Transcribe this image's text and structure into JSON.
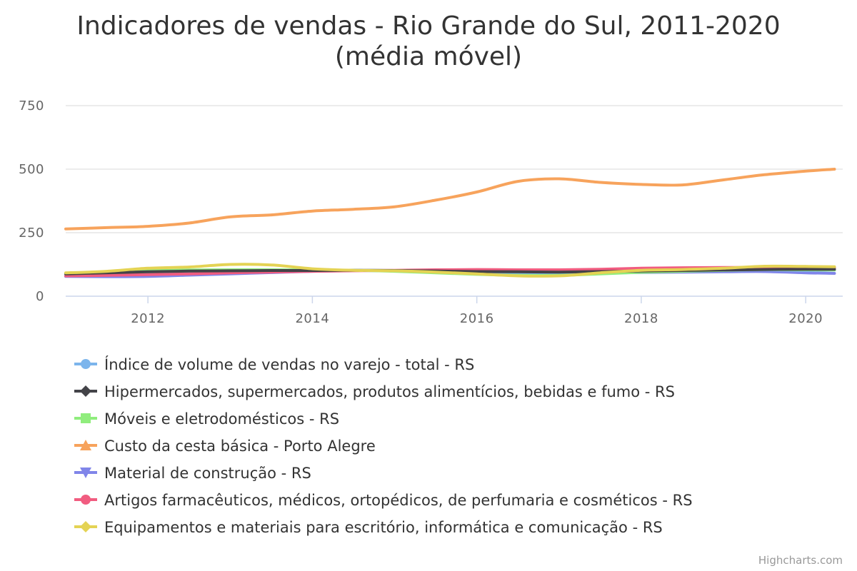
{
  "chart_data": {
    "type": "line",
    "title": "Indicadores de vendas - Rio Grande do Sul, 2011-2020",
    "subtitle": "(média móvel)",
    "xlabel": "",
    "ylabel": "",
    "xlim": [
      2011.0,
      2020.45
    ],
    "ylim": [
      0,
      750
    ],
    "x_ticks": [
      2012,
      2014,
      2016,
      2018,
      2020
    ],
    "y_ticks": [
      0,
      250,
      500,
      750
    ],
    "grid": "horizontal",
    "legend_position": "bottom",
    "x": [
      2011.0,
      2011.5,
      2012.0,
      2012.5,
      2013.0,
      2013.5,
      2014.0,
      2014.5,
      2015.0,
      2015.5,
      2016.0,
      2016.5,
      2017.0,
      2017.5,
      2018.0,
      2018.5,
      2019.0,
      2019.5,
      2020.0,
      2020.35
    ],
    "series": [
      {
        "name": "Índice de volume de vendas no varejo - total - RS",
        "color": "#7cb5ec",
        "marker": "circle",
        "values": [
          85,
          88,
          92,
          95,
          97,
          99,
          100,
          101,
          100,
          97,
          94,
          92,
          92,
          95,
          98,
          100,
          102,
          104,
          102,
          103
        ]
      },
      {
        "name": "Hipermercados, supermercados, produtos alimentícios, bebidas e fumo - RS",
        "color": "#434348",
        "marker": "diamond",
        "values": [
          88,
          92,
          96,
          99,
          100,
          101,
          101,
          102,
          101,
          99,
          97,
          96,
          95,
          97,
          99,
          101,
          103,
          105,
          106,
          106
        ]
      },
      {
        "name": "Móveis e eletrodomésticos - RS",
        "color": "#90ed7d",
        "marker": "square",
        "values": [
          90,
          95,
          100,
          103,
          104,
          104,
          103,
          102,
          98,
          92,
          86,
          82,
          82,
          88,
          94,
          98,
          102,
          105,
          104,
          103
        ]
      },
      {
        "name": "Custo da cesta básica - Porto Alegre",
        "color": "#f7a35c",
        "marker": "triangle",
        "values": [
          265,
          270,
          275,
          288,
          312,
          320,
          335,
          342,
          352,
          378,
          410,
          452,
          462,
          448,
          440,
          438,
          458,
          478,
          492,
          500
        ]
      },
      {
        "name": "Material de construção - RS",
        "color": "#8085e9",
        "marker": "triangle-down",
        "values": [
          78,
          77,
          78,
          83,
          88,
          93,
          98,
          101,
          100,
          97,
          96,
          94,
          93,
          92,
          93,
          95,
          96,
          97,
          92,
          90
        ]
      },
      {
        "name": "Artigos farmacêuticos, médicos, ortopédicos, de perfumaria e cosméticos - RS",
        "color": "#f15c80",
        "marker": "circle",
        "values": [
          80,
          82,
          85,
          88,
          92,
          95,
          98,
          100,
          102,
          104,
          105,
          104,
          104,
          106,
          110,
          112,
          113,
          113,
          112,
          112
        ]
      },
      {
        "name": "Equipamentos e materiais para escritório, informática e comunicação - RS",
        "color": "#e4d354",
        "marker": "diamond",
        "values": [
          92,
          98,
          110,
          115,
          125,
          123,
          108,
          102,
          100,
          95,
          88,
          80,
          80,
          92,
          102,
          105,
          110,
          118,
          117,
          116
        ]
      }
    ]
  },
  "credits": "Highcharts.com"
}
